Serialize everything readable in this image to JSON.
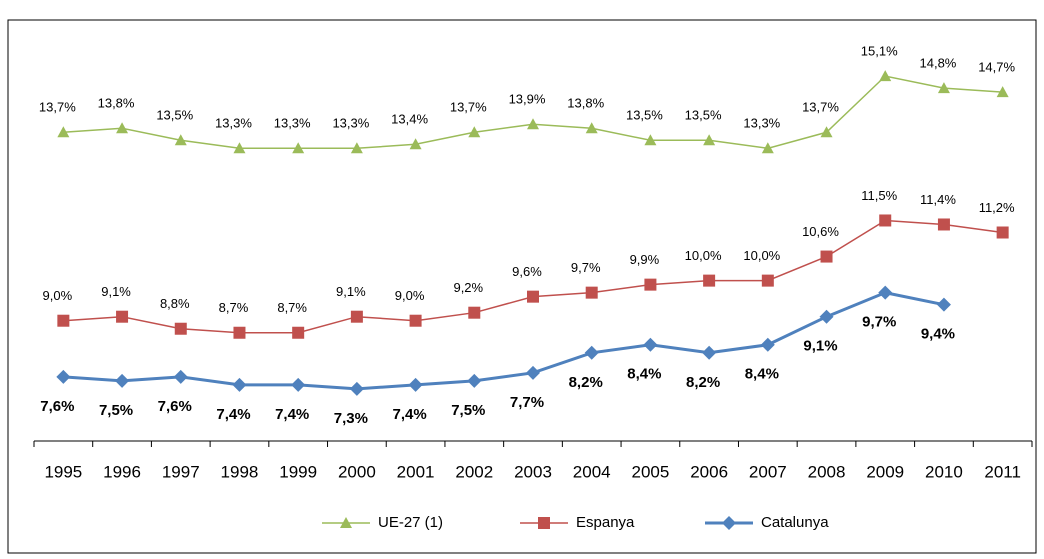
{
  "chart_data": {
    "type": "line",
    "categories": [
      "1995",
      "1996",
      "1997",
      "1998",
      "1999",
      "2000",
      "2001",
      "2002",
      "2003",
      "2004",
      "2005",
      "2006",
      "2007",
      "2008",
      "2009",
      "2010",
      "2011"
    ],
    "ylim": [
      6,
      16.5
    ],
    "legend": "bottom",
    "series": [
      {
        "name": "UE-27 (1)",
        "color": "#9bbb59",
        "marker": "triangle",
        "label_position": "above",
        "label_bold": false,
        "values": [
          13.7,
          13.8,
          13.5,
          13.3,
          13.3,
          13.3,
          13.4,
          13.7,
          13.9,
          13.8,
          13.5,
          13.5,
          13.3,
          13.7,
          15.1,
          14.8,
          14.7
        ],
        "value_labels": [
          "13,7%",
          "13,8%",
          "13,5%",
          "13,3%",
          "13,3%",
          "13,3%",
          "13,4%",
          "13,7%",
          "13,9%",
          "13,8%",
          "13,5%",
          "13,5%",
          "13,3%",
          "13,7%",
          "15,1%",
          "14,8%",
          "14,7%"
        ]
      },
      {
        "name": "Espanya",
        "color": "#c0504d",
        "marker": "square",
        "label_position": "above",
        "label_bold": false,
        "values": [
          9.0,
          9.1,
          8.8,
          8.7,
          8.7,
          9.1,
          9.0,
          9.2,
          9.6,
          9.7,
          9.9,
          10.0,
          10.0,
          10.6,
          11.5,
          11.4,
          11.2
        ],
        "value_labels": [
          "9,0%",
          "9,1%",
          "8,8%",
          "8,7%",
          "8,7%",
          "9,1%",
          "9,0%",
          "9,2%",
          "9,6%",
          "9,7%",
          "9,9%",
          "10,0%",
          "10,0%",
          "10,6%",
          "11,5%",
          "11,4%",
          "11,2%"
        ]
      },
      {
        "name": "Catalunya",
        "color": "#4f81bd",
        "marker": "diamond",
        "label_position": "below",
        "label_bold": true,
        "values": [
          7.6,
          7.5,
          7.6,
          7.4,
          7.4,
          7.3,
          7.4,
          7.5,
          7.7,
          8.2,
          8.4,
          8.2,
          8.4,
          9.1,
          9.7,
          9.4,
          null
        ],
        "value_labels": [
          "7,6%",
          "7,5%",
          "7,6%",
          "7,4%",
          "7,4%",
          "7,3%",
          "7,4%",
          "7,5%",
          "7,7%",
          "8,2%",
          "8,4%",
          "8,2%",
          "8,4%",
          "9,1%",
          "9,7%",
          "9,4%",
          null
        ]
      }
    ]
  }
}
